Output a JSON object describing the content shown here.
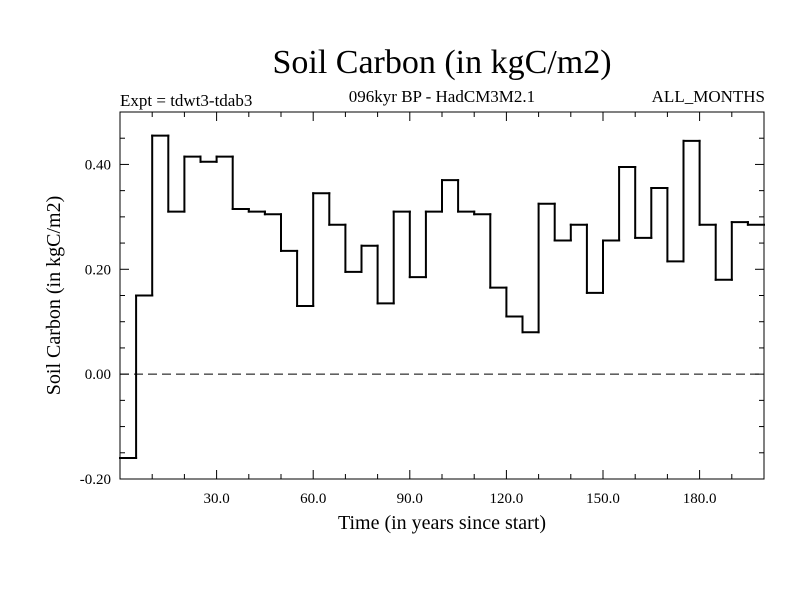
{
  "header": {
    "title": "Soil Carbon (in kgC/m2)",
    "left_label": "Expt = tdwt3-tdab3",
    "center_label": "096kyr BP - HadCM3M2.1",
    "right_label": "ALL_MONTHS"
  },
  "chart_data": {
    "type": "line",
    "style": "step",
    "xlabel": "Time (in years since start)",
    "ylabel": "Soil Carbon (in kgC/m2)",
    "xlim": [
      0,
      200
    ],
    "ylim": [
      -0.2,
      0.5
    ],
    "x_ticks": [
      30,
      60,
      90,
      120,
      150,
      180
    ],
    "x_tick_labels": [
      "30.0",
      "60.0",
      "90.0",
      "120.0",
      "150.0",
      "180.0"
    ],
    "y_ticks": [
      -0.2,
      0.0,
      0.2,
      0.4
    ],
    "y_tick_labels": [
      "-0.20",
      "0.00",
      "0.20",
      "0.40"
    ],
    "zero_line": "dashed",
    "grid": false,
    "x": [
      0,
      5,
      10,
      15,
      20,
      25,
      30,
      35,
      40,
      45,
      50,
      55,
      60,
      65,
      70,
      75,
      80,
      85,
      90,
      95,
      100,
      105,
      110,
      115,
      120,
      125,
      130,
      135,
      140,
      145,
      150,
      155,
      160,
      165,
      170,
      175,
      180,
      185,
      190,
      195
    ],
    "values": [
      -0.16,
      0.15,
      0.455,
      0.31,
      0.415,
      0.405,
      0.415,
      0.315,
      0.31,
      0.305,
      0.235,
      0.13,
      0.345,
      0.285,
      0.195,
      0.245,
      0.135,
      0.31,
      0.185,
      0.31,
      0.37,
      0.31,
      0.305,
      0.165,
      0.11,
      0.08,
      0.325,
      0.255,
      0.285,
      0.155,
      0.255,
      0.395,
      0.26,
      0.355,
      0.215,
      0.445,
      0.285,
      0.18,
      0.29,
      0.285
    ]
  }
}
